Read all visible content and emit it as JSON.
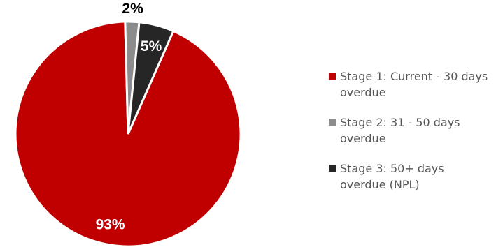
{
  "chart_data": {
    "type": "pie",
    "title": "",
    "legend_position": "right",
    "slices": [
      {
        "name": "Stage 1: Current - 30 days overdue",
        "value": 93,
        "label": "93%",
        "color": "#c00000"
      },
      {
        "name": "Stage 2: 31 - 50 days overdue",
        "value": 2,
        "label": "2%",
        "color": "#8c8c8c"
      },
      {
        "name": "Stage 3: 50+ days overdue (NPL)",
        "value": 5,
        "label": "5%",
        "color": "#262626"
      }
    ]
  }
}
